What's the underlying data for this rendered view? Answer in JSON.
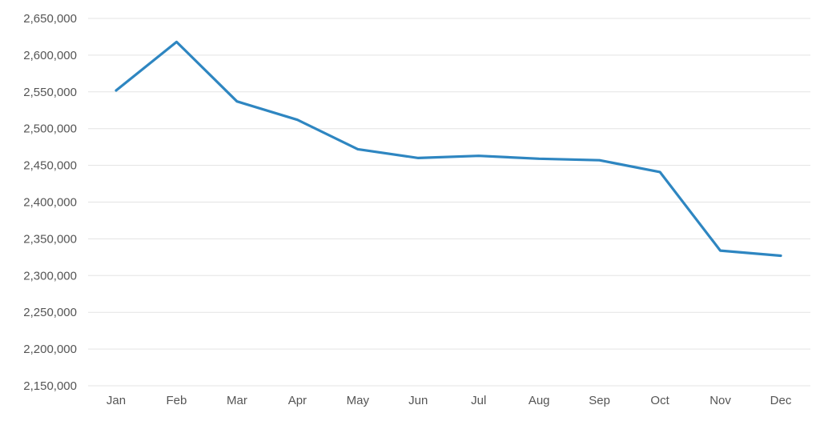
{
  "chart_data": {
    "type": "line",
    "categories": [
      "Jan",
      "Feb",
      "Mar",
      "Apr",
      "May",
      "Jun",
      "Jul",
      "Aug",
      "Sep",
      "Oct",
      "Nov",
      "Dec"
    ],
    "series": [
      {
        "values": [
          2552000,
          2618000,
          2537000,
          2512000,
          2472000,
          2460000,
          2463000,
          2459000,
          2457000,
          2441000,
          2334000,
          2327000
        ],
        "color": "#2e86c1"
      }
    ],
    "yticks": [
      "2,150,000",
      "2,200,000",
      "2,250,000",
      "2,300,000",
      "2,350,000",
      "2,400,000",
      "2,450,000",
      "2,500,000",
      "2,550,000",
      "2,600,000",
      "2,650,000"
    ],
    "ylim": [
      2150000,
      2650000
    ],
    "grid": true,
    "legend": "none"
  }
}
